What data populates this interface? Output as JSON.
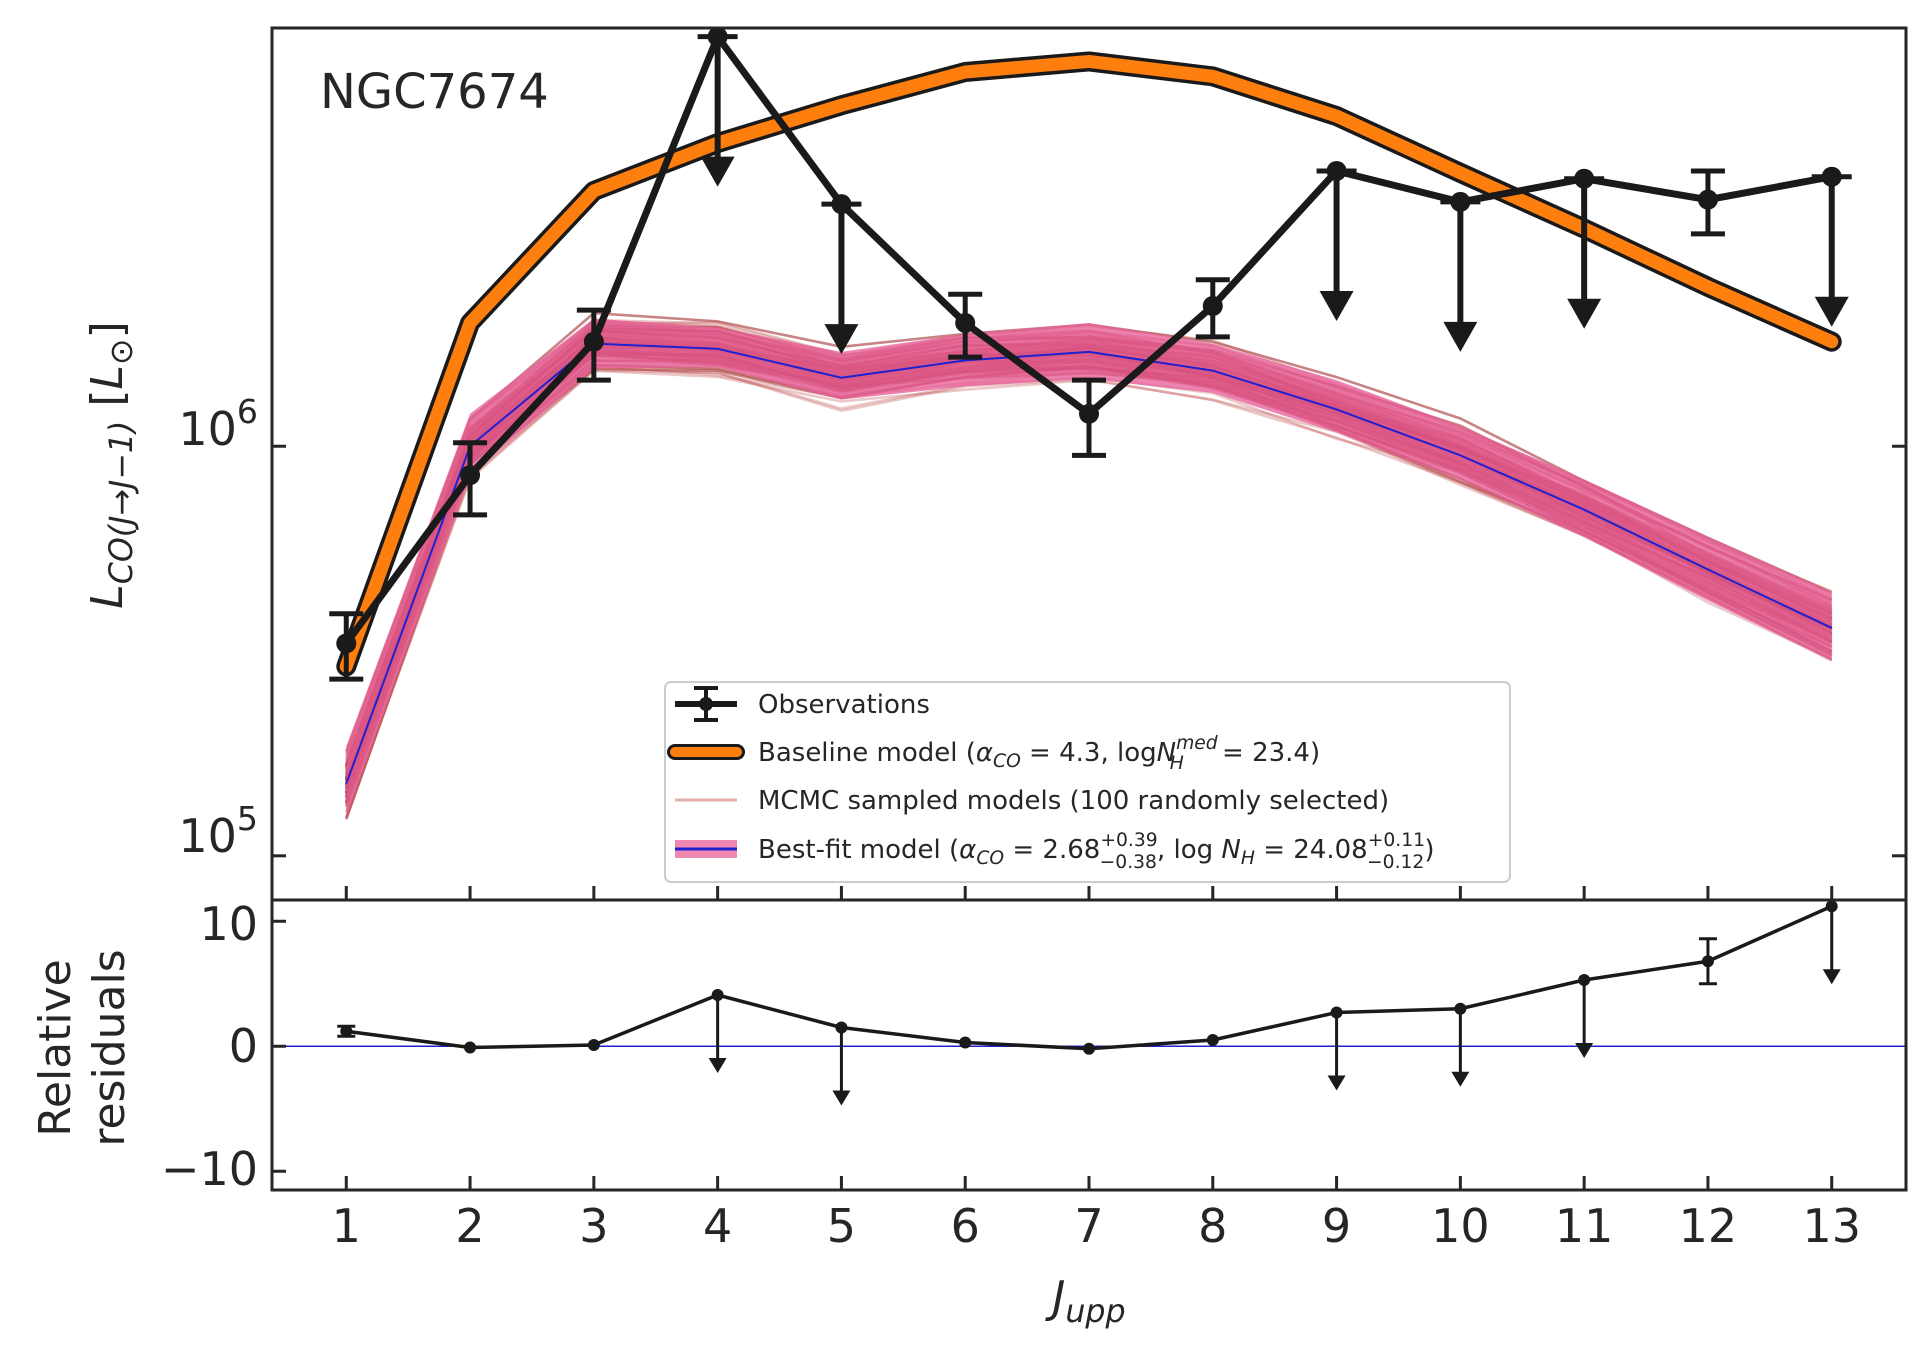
{
  "chart_data": [
    {
      "type": "line",
      "panel": "main",
      "title": "NGC7674",
      "xlabel": "J_upp",
      "ylabel": "L_CO(J→J−1) [L_⊙]",
      "y_scale": "log",
      "ylim": [
        78000,
        10500000
      ],
      "xlim": [
        0.4,
        13.6
      ],
      "y_ticks": [
        {
          "value": 100000,
          "base": "10",
          "exp": "5"
        },
        {
          "value": 1000000,
          "base": "10",
          "exp": "6"
        }
      ],
      "x": [
        1,
        2,
        3,
        4,
        5,
        6,
        7,
        8,
        9,
        10,
        11,
        12,
        13
      ],
      "series": [
        {
          "name": "Observations",
          "label": "Observations",
          "color": "#1a1a1a",
          "values": [
            330000,
            850000,
            1800000,
            10000000,
            3900000,
            2000000,
            1200000,
            2200000,
            4700000,
            3950000,
            4500000,
            4000000,
            4550000
          ],
          "err_low": [
            60000,
            170000,
            350000,
            0,
            0,
            350000,
            250000,
            350000,
            0,
            0,
            0,
            700000,
            0
          ],
          "err_high": [
            60000,
            170000,
            350000,
            0,
            0,
            350000,
            250000,
            350000,
            0,
            0,
            0,
            700000,
            0
          ],
          "upper_limit": [
            false,
            false,
            false,
            true,
            true,
            false,
            false,
            false,
            true,
            true,
            true,
            false,
            true
          ]
        },
        {
          "name": "Baseline model",
          "label_pre": "Baseline model (",
          "label_mid": " = 4.3, log",
          "label_post": " = 23.4)",
          "color": "#ff7f0e",
          "values": [
            290000,
            2000000,
            4200000,
            5500000,
            6800000,
            8200000,
            8700000,
            8000000,
            6400000,
            4650000,
            3400000,
            2450000,
            1800000
          ]
        },
        {
          "name": "MCMC sampled models",
          "label": "MCMC sampled models (100 randomly selected)",
          "color": "#c05050",
          "sample_count": 100
        },
        {
          "name": "Best-fit model",
          "label_pre": "Best-fit model (",
          "label_alpha_val": " = 2.68",
          "label_alpha_sup": "+0.39",
          "label_alpha_sub": "−0.38",
          "label_mid": ", log ",
          "label_nh_val": " = 24.08",
          "label_nh_sup": "+0.11",
          "label_nh_sub": "−0.12",
          "label_post": ")",
          "line_color": "#2020d0",
          "band_color": "#e8609a",
          "values": [
            150000,
            1000000,
            1780000,
            1730000,
            1470000,
            1620000,
            1700000,
            1530000,
            1230000,
            950000,
            700000,
            500000,
            360000
          ],
          "band_low": [
            125000,
            850000,
            1550000,
            1560000,
            1300000,
            1400000,
            1460000,
            1350000,
            1080000,
            830000,
            600000,
            420000,
            300000
          ],
          "band_high": [
            185000,
            1200000,
            2050000,
            1950000,
            1700000,
            1880000,
            2000000,
            1780000,
            1450000,
            1120000,
            830000,
            600000,
            440000
          ]
        }
      ],
      "annotation": "NGC7674"
    },
    {
      "type": "line",
      "panel": "residuals",
      "xlabel": "J_upp",
      "ylabel_line1": "Relative",
      "ylabel_line2": "residuals",
      "ylim": [
        -11.5,
        11.7
      ],
      "y_ticks": [
        {
          "value": 10,
          "label": "10"
        },
        {
          "value": 0,
          "label": "0"
        },
        {
          "value": -10,
          "label": "−10"
        }
      ],
      "x": [
        1,
        2,
        3,
        4,
        5,
        6,
        7,
        8,
        9,
        10,
        11,
        12,
        13
      ],
      "x_tick_labels": [
        "1",
        "2",
        "3",
        "4",
        "5",
        "6",
        "7",
        "8",
        "9",
        "10",
        "11",
        "12",
        "13"
      ],
      "values": [
        1.2,
        -0.1,
        0.1,
        4.1,
        1.5,
        0.3,
        -0.2,
        0.5,
        2.7,
        3.0,
        5.3,
        6.8,
        11.2
      ],
      "err": [
        0.4,
        0,
        0,
        0,
        0,
        0,
        0,
        0,
        0,
        0,
        0,
        1.8,
        0
      ],
      "upper_limit": [
        false,
        false,
        false,
        true,
        true,
        false,
        false,
        false,
        true,
        true,
        true,
        false,
        true
      ],
      "zero_line_color": "#2020d0"
    }
  ]
}
